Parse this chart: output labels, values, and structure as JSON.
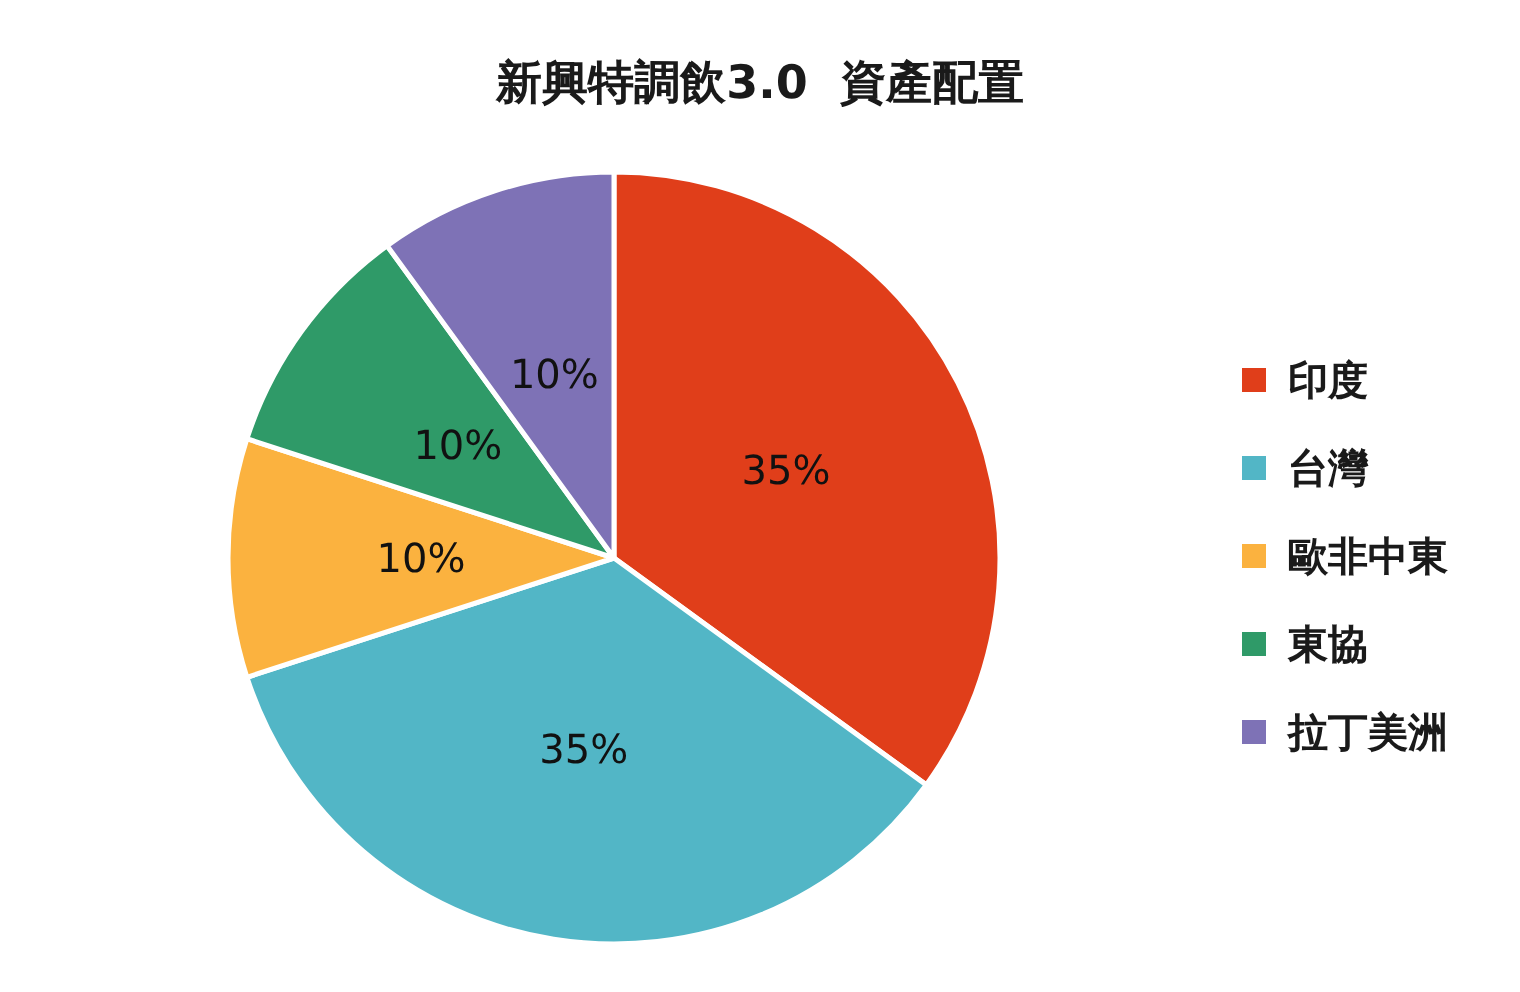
{
  "chart_data": {
    "type": "pie",
    "title": "新興特調飲3.0 資產配置",
    "categories": [
      "印度",
      "台灣",
      "歐非中東",
      "東協",
      "拉丁美洲"
    ],
    "values": [
      35,
      35,
      10,
      10,
      10
    ],
    "colors": [
      "#e03e1a",
      "#52b6c6",
      "#fbb23f",
      "#2f9a68",
      "#7e72b6"
    ],
    "value_labels": [
      "35%",
      "35%",
      "10%",
      "10%",
      "10%"
    ],
    "legend": "right"
  }
}
